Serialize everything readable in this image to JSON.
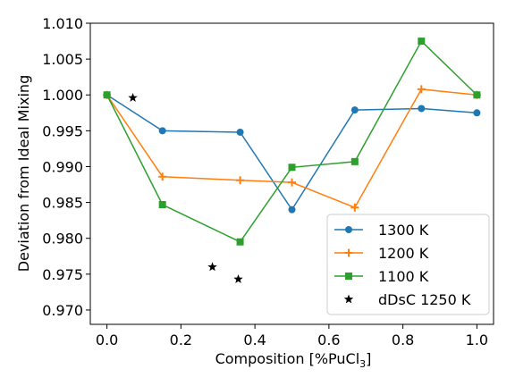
{
  "chart_data": {
    "type": "line",
    "title": "",
    "xlabel_prefix": "Composition [%PuCl",
    "xlabel_sub": "3",
    "xlabel_suffix": "]",
    "ylabel": "Deviation from Ideal Mixing",
    "xlim": [
      -0.045,
      1.045
    ],
    "ylim": [
      0.968,
      1.01
    ],
    "xticks": [
      0.0,
      0.2,
      0.4,
      0.6,
      0.8,
      1.0
    ],
    "xtick_labels": [
      "0.0",
      "0.2",
      "0.4",
      "0.6",
      "0.8",
      "1.0"
    ],
    "yticks": [
      0.97,
      0.975,
      0.98,
      0.985,
      0.99,
      0.995,
      1.0,
      1.005,
      1.01
    ],
    "ytick_labels": [
      "0.970",
      "0.975",
      "0.980",
      "0.985",
      "0.990",
      "0.995",
      "1.000",
      "1.005",
      "1.010"
    ],
    "grid": false,
    "legend_position": "lower-right",
    "series": [
      {
        "name": "1300 K",
        "color": "#1f77b4",
        "marker": "circle",
        "line": true,
        "x": [
          0.0,
          0.15,
          0.36,
          0.5,
          0.67,
          0.85,
          1.0
        ],
        "y": [
          1.0,
          0.995,
          0.9948,
          0.984,
          0.9979,
          0.9981,
          0.9975
        ]
      },
      {
        "name": "1200 K",
        "color": "#ff7f0e",
        "marker": "plus",
        "line": true,
        "x": [
          0.0,
          0.15,
          0.36,
          0.5,
          0.67,
          0.85,
          1.0
        ],
        "y": [
          1.0,
          0.9886,
          0.9881,
          0.9878,
          0.9843,
          1.0008,
          1.0
        ]
      },
      {
        "name": "1100 K",
        "color": "#2ca02c",
        "marker": "square",
        "line": true,
        "x": [
          0.0,
          0.15,
          0.36,
          0.5,
          0.67,
          0.85,
          1.0
        ],
        "y": [
          1.0,
          0.9847,
          0.9795,
          0.9899,
          0.9907,
          1.0075,
          1.0
        ]
      },
      {
        "name": "dDsC 1250 K",
        "color": "#000000",
        "marker": "star",
        "line": false,
        "x": [
          0.07,
          0.285,
          0.355
        ],
        "y": [
          0.9996,
          0.976,
          0.9743
        ]
      }
    ]
  }
}
